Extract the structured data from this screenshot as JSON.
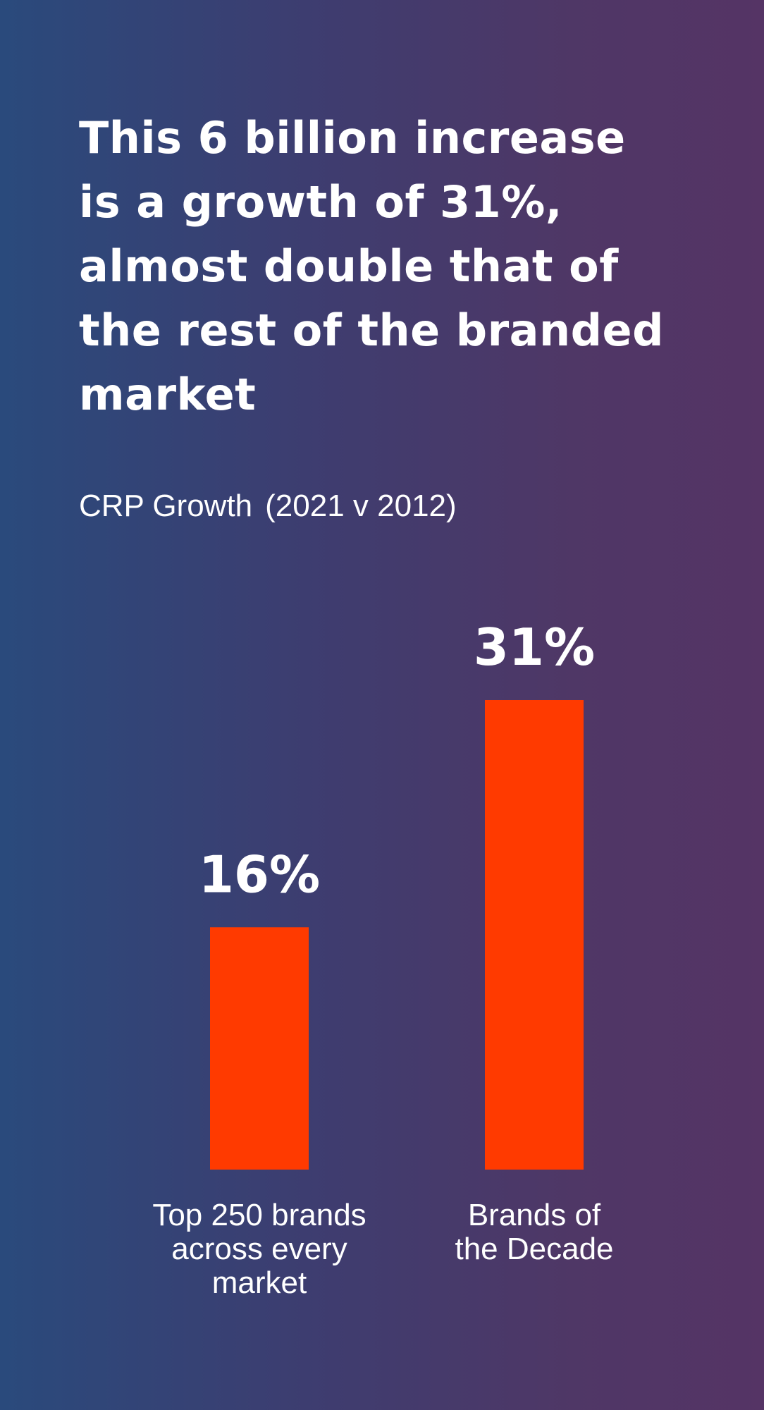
{
  "headline": {
    "lines": [
      "This 6 billion increase",
      "is a growth of 31%,",
      "almost double that of",
      "the rest of the branded",
      "market"
    ]
  },
  "chart_data": {
    "type": "bar",
    "title": "CRP Growth",
    "subtitle": "(2021 v 2012)",
    "categories": [
      [
        "Top 250 brands",
        "across every",
        "market"
      ],
      [
        "Brands of",
        "the Decade"
      ]
    ],
    "values": [
      16,
      31
    ],
    "value_labels": [
      "16%",
      "31%"
    ],
    "ylim": [
      0,
      31
    ],
    "grid": false,
    "bar_color": "#ff3a00"
  }
}
